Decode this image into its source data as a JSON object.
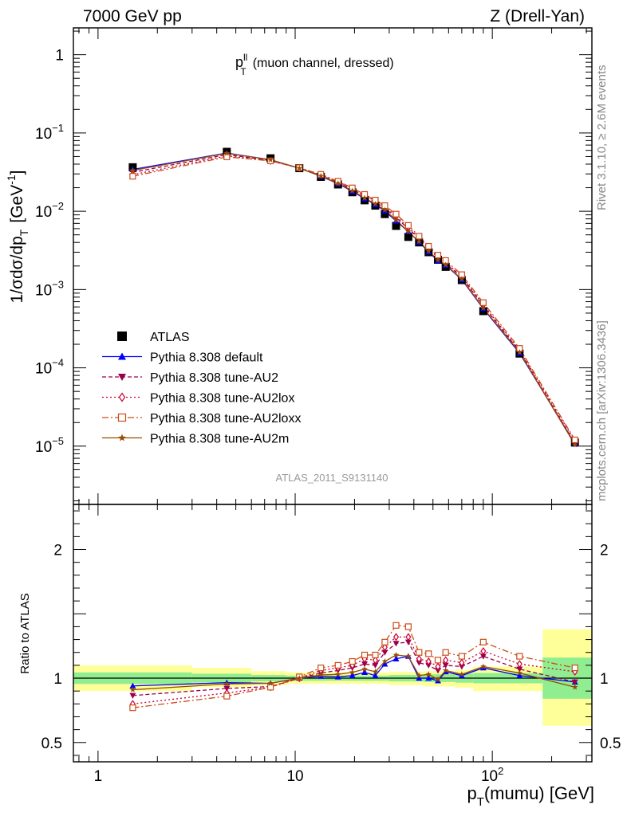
{
  "header": {
    "left": "7000 GeV pp",
    "right": "Z (Drell-Yan)"
  },
  "side": {
    "rivet": "Rivet 3.1.10, ≥ 2.6M events",
    "mcplots": "mcplots.cern.ch [arXiv:1306.3436]"
  },
  "analysis_id": "ATLAS_2011_S9131140",
  "chart_data": [
    {
      "type": "scatter",
      "panel": "main",
      "title": "p_T^ll (muon channel, dressed)",
      "title_main": "p",
      "title_sub": "T",
      "title_sup": "ll",
      "title_rest": "(muon channel, dressed)",
      "ylabel": "1/σdσ/dp_T [GeV^-1]",
      "ylabel_main": "1/σdσ/dp",
      "ylabel_sub": "T",
      "ylabel_unit": "[GeV",
      "ylabel_sup": "-1",
      "ylabel_close": "]",
      "x_scale": "log",
      "y_scale": "log",
      "xlim": [
        0.75,
        320
      ],
      "ylim": [
        1.8e-06,
        2.2
      ],
      "yticks": [
        {
          "value": 1,
          "label": "1",
          "base": "1",
          "exp": ""
        },
        {
          "value": 0.1,
          "label": "10^-1",
          "base": "10",
          "exp": "−1"
        },
        {
          "value": 0.01,
          "label": "10^-2",
          "base": "10",
          "exp": "−2"
        },
        {
          "value": 0.001,
          "label": "10^-3",
          "base": "10",
          "exp": "−3"
        },
        {
          "value": 0.0001,
          "label": "10^-4",
          "base": "10",
          "exp": "−4"
        },
        {
          "value": 1e-05,
          "label": "10^-5",
          "base": "10",
          "exp": "−5"
        }
      ],
      "legend_position": "bottom-left",
      "x": [
        1.5,
        4.5,
        7.5,
        10.5,
        13.5,
        16.5,
        19.5,
        22.5,
        25.5,
        28.5,
        32.5,
        37.5,
        42.5,
        47.5,
        53.0,
        58.0,
        70.0,
        90.0,
        137.5,
        262.5
      ],
      "series": [
        {
          "name": "ATLAS",
          "marker": "square",
          "color": "#000000",
          "dash": "",
          "values": [
            0.0365,
            0.0575,
            0.0475,
            0.0355,
            0.0275,
            0.022,
            0.0175,
            0.0138,
            0.0118,
            0.0092,
            0.0065,
            0.0047,
            0.004,
            0.003,
            0.0024,
            0.00195,
            0.00132,
            0.00053,
            0.000152,
            1.11e-05
          ]
        },
        {
          "name": "Pythia 8.308 default",
          "marker": "triangle-up",
          "color": "#0000ff",
          "dash": "",
          "values": [
            0.0342,
            0.0555,
            0.0455,
            0.0355,
            0.028,
            0.0225,
            0.018,
            0.0145,
            0.0122,
            0.0101,
            0.0075,
            0.0055,
            0.00405,
            0.00303,
            0.00232,
            0.00205,
            0.00134,
            0.00057,
            0.000154,
            1.07e-05
          ]
        },
        {
          "name": "Pythia 8.308 tune-AU2",
          "marker": "triangle-down",
          "color": "#99004c",
          "dash": "5,3",
          "values": [
            0.0315,
            0.053,
            0.0445,
            0.0355,
            0.0287,
            0.0233,
            0.019,
            0.0154,
            0.013,
            0.011,
            0.0083,
            0.006,
            0.0045,
            0.00333,
            0.00255,
            0.00215,
            0.00144,
            0.00062,
            0.000163,
            1.08e-05
          ]
        },
        {
          "name": "Pythia 8.308 tune-AU2lox",
          "marker": "diamond-open",
          "color": "#cc0033",
          "dash": "2,3",
          "values": [
            0.0293,
            0.051,
            0.044,
            0.0357,
            0.0292,
            0.0238,
            0.0195,
            0.016,
            0.0135,
            0.0114,
            0.0087,
            0.0062,
            0.00465,
            0.00345,
            0.00262,
            0.00222,
            0.00148,
            0.00064,
            0.000168,
            1.16e-05
          ]
        },
        {
          "name": "Pythia 8.308 tune-AU2loxx",
          "marker": "square-open",
          "color": "#cc4c19",
          "dash": "8,3,2,3",
          "values": [
            0.028,
            0.0495,
            0.044,
            0.036,
            0.0296,
            0.0242,
            0.0199,
            0.0164,
            0.0139,
            0.0118,
            0.0092,
            0.0066,
            0.0048,
            0.00357,
            0.00275,
            0.00235,
            0.00155,
            0.00068,
            0.000177,
            1.2e-05
          ]
        },
        {
          "name": "Pythia 8.308 tune-AU2m",
          "marker": "star",
          "color": "#994c00",
          "dash": "",
          "values": [
            0.0332,
            0.055,
            0.0455,
            0.0355,
            0.0282,
            0.0227,
            0.0183,
            0.0148,
            0.0124,
            0.0104,
            0.0077,
            0.0055,
            0.0041,
            0.0031,
            0.00238,
            0.00207,
            0.00136,
            0.00058,
            0.000158,
            1.04e-05
          ]
        }
      ]
    },
    {
      "type": "scatter",
      "panel": "ratio",
      "ylabel": "Ratio to ATLAS",
      "xlabel": "p_T(mumu) [GeV]",
      "xlabel_main": "p",
      "xlabel_sub": "T",
      "xlabel_rest": "(mumu) [GeV]",
      "x_scale": "log",
      "xlim": [
        0.75,
        320
      ],
      "ylim": [
        0.35,
        2.35
      ],
      "xticks": [
        {
          "value": 1,
          "label": "1",
          "base": "1",
          "exp": ""
        },
        {
          "value": 10,
          "label": "10",
          "base": "10",
          "exp": ""
        },
        {
          "value": 100,
          "label": "10^2",
          "base": "10",
          "exp": "2"
        }
      ],
      "yticks": [
        {
          "value": 0.5,
          "label": "0.5"
        },
        {
          "value": 1,
          "label": "1"
        },
        {
          "value": 2,
          "label": "2"
        }
      ],
      "band_colors": {
        "stat": "#90ee90",
        "total": "#ffff99"
      },
      "bands": [
        {
          "x0": 0.75,
          "x1": 3.0,
          "stat": [
            0.955,
            1.045
          ],
          "total": [
            0.9,
            1.1
          ]
        },
        {
          "x0": 3.0,
          "x1": 6.0,
          "stat": [
            0.965,
            1.035
          ],
          "total": [
            0.93,
            1.08
          ]
        },
        {
          "x0": 6.0,
          "x1": 9.0,
          "stat": [
            0.975,
            1.025
          ],
          "total": [
            0.945,
            1.055
          ]
        },
        {
          "x0": 9.0,
          "x1": 30.0,
          "stat": [
            0.98,
            1.02
          ],
          "total": [
            0.955,
            1.045
          ]
        },
        {
          "x0": 30.0,
          "x1": 45.0,
          "stat": [
            0.975,
            1.025
          ],
          "total": [
            0.945,
            1.05
          ]
        },
        {
          "x0": 45.0,
          "x1": 65.0,
          "stat": [
            0.97,
            1.03
          ],
          "total": [
            0.935,
            1.055
          ]
        },
        {
          "x0": 65.0,
          "x1": 80.0,
          "stat": [
            0.965,
            1.035
          ],
          "total": [
            0.925,
            1.065
          ]
        },
        {
          "x0": 80.0,
          "x1": 180.0,
          "stat": [
            0.96,
            1.04
          ],
          "total": [
            0.9,
            1.09
          ]
        },
        {
          "x0": 180.0,
          "x1": 320.0,
          "stat": [
            0.84,
            1.16
          ],
          "total": [
            0.63,
            1.38
          ]
        }
      ],
      "x": [
        1.5,
        4.5,
        7.5,
        10.5,
        13.5,
        16.5,
        19.5,
        22.5,
        25.5,
        28.5,
        32.5,
        37.5,
        42.5,
        47.5,
        53.0,
        58.0,
        70.0,
        90.0,
        137.5,
        262.5
      ],
      "series": [
        {
          "name": "Pythia 8.308 default",
          "values": [
            0.94,
            0.965,
            0.96,
            1.0,
            1.015,
            1.01,
            1.02,
            1.045,
            1.02,
            1.11,
            1.15,
            1.17,
            1.0,
            1.0,
            0.98,
            1.05,
            1.02,
            1.08,
            1.02,
            0.97
          ]
        },
        {
          "name": "Pythia 8.308 tune-AU2",
          "values": [
            0.865,
            0.92,
            0.935,
            1.0,
            1.04,
            1.06,
            1.08,
            1.11,
            1.1,
            1.2,
            1.27,
            1.28,
            1.12,
            1.1,
            1.06,
            1.1,
            1.09,
            1.17,
            1.07,
            0.97
          ]
        },
        {
          "name": "Pythia 8.308 tune-AU2lox",
          "values": [
            0.8,
            0.885,
            0.93,
            1.0,
            1.06,
            1.08,
            1.1,
            1.15,
            1.14,
            1.24,
            1.32,
            1.32,
            1.15,
            1.13,
            1.09,
            1.14,
            1.12,
            1.21,
            1.11,
            1.05
          ]
        },
        {
          "name": "Pythia 8.308 tune-AU2loxx",
          "values": [
            0.77,
            0.86,
            0.93,
            1.01,
            1.08,
            1.1,
            1.13,
            1.18,
            1.18,
            1.28,
            1.41,
            1.4,
            1.2,
            1.19,
            1.14,
            1.2,
            1.17,
            1.28,
            1.17,
            1.08
          ]
        },
        {
          "name": "Pythia 8.308 tune-AU2m",
          "values": [
            0.91,
            0.955,
            0.96,
            1.0,
            1.025,
            1.03,
            1.045,
            1.07,
            1.05,
            1.13,
            1.18,
            1.17,
            1.02,
            1.03,
            0.99,
            1.06,
            1.03,
            1.09,
            1.04,
            0.93
          ]
        }
      ]
    }
  ]
}
